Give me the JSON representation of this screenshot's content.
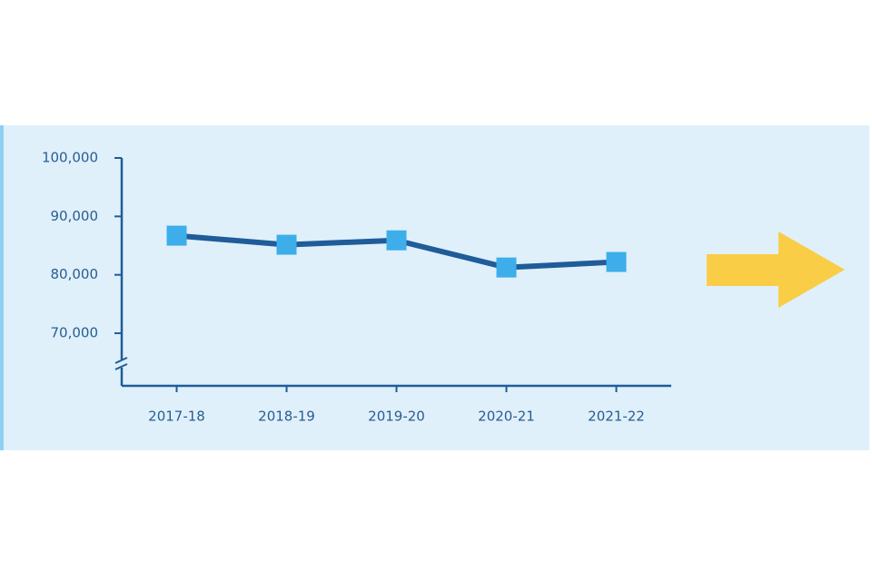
{
  "chart_data": {
    "type": "line",
    "categories": [
      "2017-18",
      "2018-19",
      "2019-20",
      "2020-21",
      "2021-22"
    ],
    "series": [
      {
        "color": "#1f5c99",
        "marker_color": "#3daee9",
        "values": [
          86700,
          85150,
          85900,
          81250,
          82200
        ]
      }
    ],
    "ylim": [
      61000,
      100000
    ],
    "yticks": [
      {
        "value": 70000,
        "label": "70,000"
      },
      {
        "value": 80000,
        "label": "80,000"
      },
      {
        "value": 90000,
        "label": "90,000"
      },
      {
        "value": 100000,
        "label": "100,000"
      }
    ],
    "grid": false
  }
}
